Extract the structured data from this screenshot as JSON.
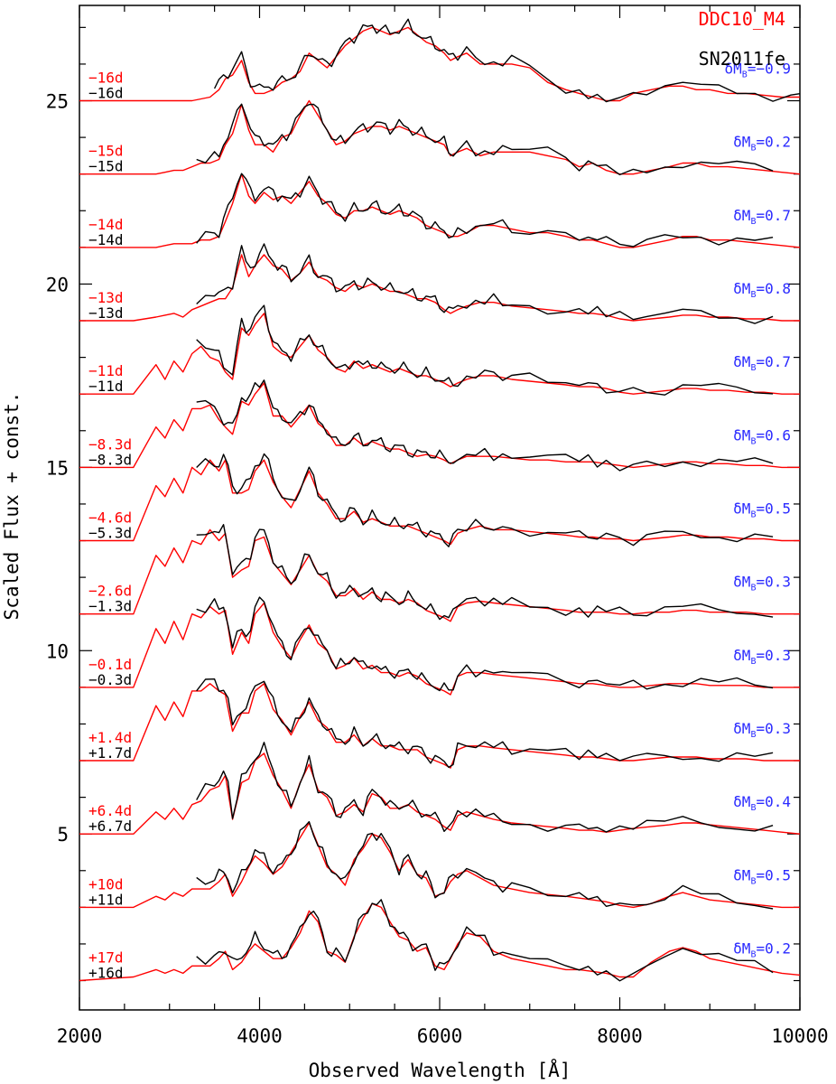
{
  "chart_data": {
    "type": "line",
    "title": "",
    "xlabel": "Observed Wavelength  [Å]",
    "ylabel": "Scaled Flux + const.",
    "xlim": [
      2000,
      10000
    ],
    "ylim": [
      0.2,
      27.6
    ],
    "x_ticks": [
      2000,
      4000,
      6000,
      8000,
      10000
    ],
    "y_ticks": [
      5,
      10,
      15,
      20,
      25
    ],
    "legend": [
      {
        "name": "DDC10_M4",
        "color": "#ff0000"
      },
      {
        "name": "SN2011fe",
        "color": "#000000"
      }
    ],
    "legend_position": "top-right",
    "colors": {
      "model": "#ff0000",
      "observed": "#000000",
      "delta": "#2a2aff",
      "axis": "#000000"
    },
    "delta_symbol": "δM",
    "delta_subscript": "B",
    "model_x": [
      2000,
      2600,
      2850,
      2950,
      3050,
      3150,
      3250,
      3350,
      3450,
      3550,
      3620,
      3700,
      3800,
      3880,
      3950,
      4050,
      4150,
      4250,
      4350,
      4450,
      4550,
      4650,
      4750,
      4850,
      4950,
      5050,
      5150,
      5250,
      5350,
      5450,
      5550,
      5650,
      5750,
      5850,
      5950,
      6050,
      6120,
      6200,
      6300,
      6450,
      6600,
      6800,
      7000,
      7200,
      7400,
      7550,
      7700,
      7850,
      8000,
      8150,
      8350,
      8550,
      8700,
      8850,
      9000,
      9200,
      9400,
      9600,
      9800,
      10000
    ],
    "observed_x": [
      3300,
      3400,
      3500,
      3550,
      3600,
      3650,
      3700,
      3750,
      3800,
      3850,
      3900,
      3950,
      4000,
      4050,
      4100,
      4150,
      4200,
      4250,
      4300,
      4350,
      4400,
      4450,
      4500,
      4550,
      4600,
      4650,
      4700,
      4750,
      4800,
      4850,
      4900,
      4950,
      5000,
      5050,
      5100,
      5150,
      5200,
      5250,
      5300,
      5350,
      5400,
      5450,
      5500,
      5550,
      5600,
      5650,
      5700,
      5750,
      5800,
      5850,
      5900,
      5950,
      6000,
      6050,
      6100,
      6150,
      6200,
      6300,
      6400,
      6500,
      6600,
      6700,
      6800,
      7000,
      7200,
      7400,
      7550,
      7650,
      7750,
      7850,
      8000,
      8150,
      8300,
      8500,
      8700,
      8900,
      9100,
      9300,
      9500,
      9700,
      9900,
      10000
    ],
    "series": [
      {
        "model_epoch": "−16d",
        "observed_epoch": "−16d",
        "delta_value": "=−0.9",
        "offset": 25.0,
        "observed_start": 3450,
        "observed_end": 10000,
        "model_rel": [
          0.0,
          0.0,
          0.0,
          0.0,
          0.0,
          0.0,
          0.0,
          0.05,
          0.1,
          0.3,
          0.6,
          0.7,
          1.1,
          0.5,
          0.2,
          0.2,
          0.3,
          0.5,
          0.6,
          0.8,
          1.3,
          1.1,
          0.9,
          1.2,
          1.5,
          1.7,
          1.9,
          2.0,
          1.9,
          1.8,
          1.9,
          2.0,
          1.8,
          1.6,
          1.5,
          1.3,
          1.1,
          1.2,
          1.3,
          1.0,
          1.0,
          1.0,
          0.9,
          0.5,
          0.3,
          0.2,
          0.1,
          0.0,
          0.0,
          0.2,
          0.3,
          0.4,
          0.4,
          0.3,
          0.3,
          0.2,
          0.2,
          0.15,
          0.1,
          0.1
        ]
      },
      {
        "model_epoch": "−15d",
        "observed_epoch": "−15d",
        "delta_value": "=0.2",
        "offset": 23.0,
        "observed_start": 3300,
        "observed_end": 9700,
        "model_rel": [
          0.0,
          0.0,
          0.0,
          0.05,
          0.1,
          0.1,
          0.2,
          0.3,
          0.3,
          0.4,
          0.8,
          1.1,
          1.9,
          1.2,
          0.8,
          0.8,
          0.6,
          1.0,
          1.1,
          1.6,
          2.0,
          1.6,
          1.2,
          0.8,
          0.9,
          1.1,
          1.2,
          1.3,
          1.3,
          1.2,
          1.3,
          1.2,
          1.1,
          1.0,
          0.9,
          0.8,
          0.5,
          0.6,
          0.7,
          0.5,
          0.6,
          0.6,
          0.6,
          0.5,
          0.4,
          0.2,
          0.3,
          0.1,
          0.0,
          0.0,
          0.1,
          0.2,
          0.3,
          0.3,
          0.2,
          0.2,
          0.15,
          0.1,
          0.05,
          0.0
        ]
      },
      {
        "model_epoch": "−14d",
        "observed_epoch": "−14d",
        "delta_value": "=0.7",
        "offset": 21.0,
        "observed_start": 3300,
        "observed_end": 9700,
        "model_rel": [
          0.0,
          0.0,
          0.0,
          0.05,
          0.1,
          0.1,
          0.1,
          0.2,
          0.2,
          0.3,
          0.7,
          1.2,
          2.0,
          1.4,
          1.2,
          1.5,
          1.3,
          1.4,
          1.2,
          1.5,
          1.8,
          1.4,
          1.2,
          0.9,
          0.8,
          1.0,
          1.0,
          1.1,
          1.0,
          0.9,
          1.0,
          0.9,
          0.8,
          0.6,
          0.5,
          0.4,
          0.3,
          0.3,
          0.4,
          0.6,
          0.6,
          0.5,
          0.4,
          0.4,
          0.3,
          0.2,
          0.2,
          0.1,
          0.0,
          0.0,
          0.1,
          0.2,
          0.3,
          0.3,
          0.2,
          0.2,
          0.15,
          0.1,
          0.05,
          0.0
        ]
      },
      {
        "model_epoch": "−13d",
        "observed_epoch": "−13d",
        "delta_value": "=0.8",
        "offset": 19.0,
        "observed_start": 3300,
        "observed_end": 9700,
        "model_rel": [
          0.0,
          0.0,
          0.1,
          0.15,
          0.2,
          0.1,
          0.3,
          0.4,
          0.5,
          0.6,
          0.6,
          0.9,
          1.8,
          1.2,
          1.5,
          1.8,
          1.5,
          1.4,
          1.1,
          1.3,
          1.6,
          1.2,
          1.1,
          0.9,
          0.8,
          1.0,
          0.9,
          1.0,
          0.9,
          0.8,
          0.8,
          0.7,
          0.6,
          0.6,
          0.5,
          0.3,
          0.2,
          0.3,
          0.4,
          0.5,
          0.5,
          0.4,
          0.35,
          0.3,
          0.25,
          0.2,
          0.2,
          0.15,
          0.05,
          0.0,
          0.05,
          0.1,
          0.15,
          0.15,
          0.1,
          0.1,
          0.05,
          0.05,
          0.0,
          0.0
        ]
      },
      {
        "model_epoch": "−11d",
        "observed_epoch": "−11d",
        "delta_value": "=0.7",
        "offset": 17.0,
        "observed_start": 3300,
        "observed_end": 9700,
        "model_rel": [
          0.0,
          0.0,
          0.8,
          0.4,
          0.9,
          0.6,
          1.1,
          1.3,
          1.0,
          0.9,
          0.6,
          0.4,
          1.8,
          1.6,
          1.9,
          2.2,
          1.3,
          1.1,
          1.0,
          1.3,
          1.6,
          1.2,
          1.0,
          0.7,
          0.6,
          0.9,
          0.7,
          0.8,
          0.7,
          0.6,
          0.7,
          0.6,
          0.5,
          0.5,
          0.4,
          0.3,
          0.2,
          0.3,
          0.4,
          0.5,
          0.5,
          0.4,
          0.35,
          0.3,
          0.25,
          0.2,
          0.2,
          0.15,
          0.05,
          0.0,
          0.05,
          0.1,
          0.15,
          0.15,
          0.1,
          0.1,
          0.05,
          0.05,
          0.0,
          0.0
        ]
      },
      {
        "model_epoch": "−8.3d",
        "observed_epoch": "−8.3d",
        "delta_value": "=0.6",
        "offset": 15.0,
        "observed_start": 3250,
        "observed_end": 9700,
        "model_rel": [
          0.0,
          0.0,
          1.1,
          0.8,
          1.3,
          1.0,
          1.6,
          1.6,
          1.7,
          1.3,
          1.1,
          0.9,
          1.8,
          1.7,
          2.0,
          2.3,
          1.4,
          1.4,
          1.1,
          1.4,
          1.7,
          1.2,
          1.0,
          0.6,
          0.6,
          0.8,
          0.6,
          0.7,
          0.6,
          0.5,
          0.5,
          0.4,
          0.3,
          0.35,
          0.3,
          0.2,
          0.1,
          0.2,
          0.3,
          0.3,
          0.3,
          0.25,
          0.2,
          0.2,
          0.15,
          0.15,
          0.15,
          0.1,
          0.05,
          0.0,
          0.05,
          0.1,
          0.15,
          0.15,
          0.1,
          0.1,
          0.05,
          0.05,
          0.0,
          0.0
        ]
      },
      {
        "model_epoch": "−4.6d",
        "observed_epoch": "−5.3d",
        "delta_value": "=0.5",
        "offset": 13.0,
        "observed_start": 3250,
        "observed_end": 9700,
        "model_rel": [
          0.0,
          0.0,
          1.5,
          1.2,
          1.7,
          1.3,
          2.0,
          1.8,
          2.2,
          1.9,
          2.2,
          1.3,
          1.3,
          1.4,
          1.9,
          2.2,
          1.6,
          1.2,
          0.9,
          1.4,
          1.9,
          1.3,
          1.0,
          0.6,
          0.6,
          0.8,
          0.5,
          0.6,
          0.5,
          0.4,
          0.4,
          0.4,
          0.3,
          0.2,
          0.1,
          0.0,
          -0.1,
          0.2,
          0.3,
          0.4,
          0.3,
          0.3,
          0.25,
          0.2,
          0.15,
          0.1,
          0.1,
          0.05,
          0.05,
          0.0,
          0.05,
          0.1,
          0.15,
          0.15,
          0.1,
          0.1,
          0.05,
          0.05,
          0.0,
          0.0
        ]
      },
      {
        "model_epoch": "−2.6d",
        "observed_epoch": "−1.3d",
        "delta_value": "=0.3",
        "offset": 11.0,
        "observed_start": 3250,
        "observed_end": 9700,
        "model_rel": [
          0.0,
          0.0,
          1.6,
          1.3,
          1.8,
          1.4,
          2.0,
          1.9,
          2.3,
          2.0,
          2.2,
          1.0,
          1.2,
          1.3,
          2.0,
          2.1,
          1.4,
          1.1,
          0.8,
          1.2,
          1.6,
          1.1,
          0.9,
          0.5,
          0.5,
          0.7,
          0.4,
          0.6,
          0.4,
          0.4,
          0.3,
          0.4,
          0.3,
          0.1,
          0.0,
          -0.1,
          -0.2,
          0.2,
          0.3,
          0.35,
          0.3,
          0.25,
          0.2,
          0.15,
          0.1,
          0.05,
          0.05,
          0.05,
          0.0,
          0.0,
          0.05,
          0.05,
          0.1,
          0.1,
          0.05,
          0.05,
          0.05,
          0.0,
          0.0,
          0.0
        ]
      },
      {
        "model_epoch": "−0.1d",
        "observed_epoch": "−0.3d",
        "delta_value": "=0.3",
        "offset": 9.0,
        "observed_start": 3250,
        "observed_end": 9700,
        "model_rel": [
          0.0,
          0.0,
          1.6,
          1.2,
          1.8,
          1.3,
          2.0,
          1.9,
          2.2,
          2.0,
          2.1,
          0.9,
          1.5,
          1.2,
          2.0,
          2.3,
          1.5,
          1.1,
          0.8,
          1.3,
          1.7,
          1.2,
          1.0,
          0.5,
          0.6,
          0.8,
          0.5,
          0.6,
          0.4,
          0.4,
          0.3,
          0.4,
          0.3,
          0.1,
          0.0,
          -0.1,
          -0.2,
          0.3,
          0.4,
          0.4,
          0.35,
          0.3,
          0.25,
          0.2,
          0.15,
          0.1,
          0.1,
          0.05,
          0.0,
          0.0,
          0.05,
          0.1,
          0.1,
          0.1,
          0.05,
          0.05,
          0.05,
          0.0,
          0.0,
          0.0
        ]
      },
      {
        "model_epoch": "+1.4d",
        "observed_epoch": "+1.7d",
        "delta_value": "=0.3",
        "offset": 7.0,
        "observed_start": 3250,
        "observed_end": 9700,
        "model_rel": [
          0.0,
          0.0,
          1.5,
          1.1,
          1.6,
          1.2,
          1.9,
          1.9,
          2.1,
          1.9,
          1.8,
          0.8,
          1.3,
          1.3,
          1.9,
          2.1,
          1.4,
          1.1,
          0.7,
          1.2,
          1.6,
          1.1,
          0.9,
          0.5,
          0.5,
          0.7,
          0.4,
          0.6,
          0.4,
          0.4,
          0.3,
          0.3,
          0.3,
          0.1,
          0.0,
          -0.1,
          -0.2,
          0.3,
          0.4,
          0.4,
          0.35,
          0.3,
          0.25,
          0.2,
          0.15,
          0.1,
          0.1,
          0.05,
          0.0,
          0.0,
          0.05,
          0.1,
          0.1,
          0.1,
          0.05,
          0.05,
          0.05,
          0.0,
          0.0,
          0.0
        ]
      },
      {
        "model_epoch": "+6.4d",
        "observed_epoch": "+6.7d",
        "delta_value": "=0.4",
        "offset": 5.0,
        "observed_start": 3300,
        "observed_end": 9700,
        "model_rel": [
          0.0,
          0.0,
          0.6,
          0.4,
          0.7,
          0.4,
          0.8,
          0.9,
          1.2,
          1.3,
          1.6,
          0.4,
          1.4,
          1.5,
          2.0,
          2.2,
          1.6,
          1.2,
          0.7,
          1.4,
          1.9,
          1.2,
          1.0,
          0.5,
          0.6,
          0.8,
          0.6,
          1.1,
          1.0,
          0.7,
          0.7,
          0.8,
          0.6,
          0.5,
          0.4,
          0.2,
          0.1,
          0.5,
          0.6,
          0.5,
          0.4,
          0.3,
          0.25,
          0.2,
          0.15,
          0.1,
          0.1,
          0.05,
          0.1,
          0.15,
          0.2,
          0.25,
          0.3,
          0.3,
          0.25,
          0.2,
          0.15,
          0.1,
          0.05,
          0.0
        ]
      },
      {
        "model_epoch": "+10d",
        "observed_epoch": "+11d",
        "delta_value": "=0.5",
        "offset": 3.0,
        "observed_start": 3300,
        "observed_end": 9700,
        "model_rel": [
          0.0,
          0.0,
          0.3,
          0.2,
          0.4,
          0.3,
          0.5,
          0.5,
          0.5,
          0.7,
          0.9,
          0.3,
          0.7,
          1.1,
          1.4,
          1.2,
          0.9,
          1.1,
          1.5,
          1.9,
          2.3,
          1.7,
          1.1,
          0.9,
          0.6,
          1.3,
          1.6,
          2.0,
          1.9,
          1.5,
          1.0,
          1.3,
          0.9,
          0.8,
          0.3,
          0.4,
          0.7,
          0.9,
          1.0,
          0.8,
          0.6,
          0.5,
          0.4,
          0.35,
          0.3,
          0.25,
          0.2,
          0.15,
          0.05,
          0.0,
          0.1,
          0.3,
          0.4,
          0.3,
          0.2,
          0.15,
          0.1,
          0.05,
          0.0,
          0.0
        ]
      },
      {
        "model_epoch": "+17d",
        "observed_epoch": "+16d",
        "delta_value": "=0.2",
        "offset": 1.0,
        "observed_start": 3300,
        "observed_end": 9700,
        "model_rel": [
          0.0,
          0.1,
          0.3,
          0.2,
          0.3,
          0.2,
          0.4,
          0.4,
          0.4,
          0.6,
          0.8,
          0.3,
          0.5,
          0.8,
          1.0,
          0.8,
          0.6,
          0.6,
          0.9,
          1.3,
          1.9,
          1.6,
          0.8,
          0.7,
          0.5,
          1.2,
          1.7,
          2.1,
          2.0,
          1.6,
          1.2,
          1.1,
          0.8,
          0.9,
          0.4,
          0.3,
          0.6,
          1.0,
          1.3,
          1.2,
          0.8,
          0.6,
          0.5,
          0.4,
          0.3,
          0.3,
          0.25,
          0.2,
          0.1,
          0.1,
          0.5,
          0.8,
          0.9,
          0.8,
          0.6,
          0.5,
          0.4,
          0.3,
          0.2,
          0.15
        ]
      }
    ]
  }
}
